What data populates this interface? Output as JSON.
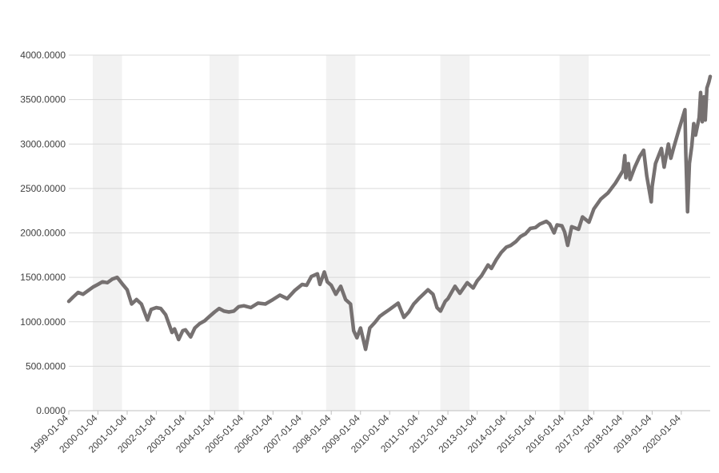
{
  "chart_data": {
    "type": "line",
    "title": "",
    "xlabel": "",
    "ylabel": "",
    "ylim": [
      0,
      4000
    ],
    "yticks": [
      "0.0000",
      "500.0000",
      "1000.0000",
      "1500.0000",
      "2000.0000",
      "2500.0000",
      "3000.0000",
      "3500.0000",
      "4000.0000"
    ],
    "xticks": [
      "1999-01-04",
      "2000-01-04",
      "2001-01-04",
      "2002-01-04",
      "2003-01-04",
      "2004-01-04",
      "2005-01-04",
      "2006-01-04",
      "2007-01-04",
      "2008-01-04",
      "2009-01-04",
      "2010-01-04",
      "2011-01-04",
      "2012-01-04",
      "2013-01-04",
      "2014-01-04",
      "2015-01-04",
      "2016-01-04",
      "2017-01-04",
      "2018-01-04",
      "2019-01-04",
      "2020-01-04"
    ],
    "grid": true,
    "line_color": "#767171",
    "shade_color": "#f2f2f2",
    "shaded_periods": [
      [
        "1999-11-01",
        "2000-11-01"
      ],
      [
        "2003-11-01",
        "2004-11-01"
      ],
      [
        "2007-11-01",
        "2008-11-01"
      ],
      [
        "2011-10-01",
        "2012-10-01"
      ],
      [
        "2015-11-01",
        "2016-11-01"
      ]
    ],
    "x": [
      "1999-01-04",
      "1999-03-01",
      "1999-05-01",
      "1999-07-01",
      "1999-09-01",
      "1999-11-01",
      "2000-01-04",
      "2000-03-01",
      "2000-05-01",
      "2000-07-01",
      "2000-09-01",
      "2000-11-01",
      "2001-01-04",
      "2001-03-01",
      "2001-05-01",
      "2001-07-01",
      "2001-09-15",
      "2001-11-01",
      "2002-01-04",
      "2002-03-01",
      "2002-05-01",
      "2002-07-20",
      "2002-08-20",
      "2002-10-10",
      "2002-12-01",
      "2003-01-04",
      "2003-03-10",
      "2003-05-01",
      "2003-07-01",
      "2003-09-01",
      "2003-11-01",
      "2004-01-04",
      "2004-03-01",
      "2004-05-01",
      "2004-07-01",
      "2004-09-01",
      "2004-11-01",
      "2005-01-04",
      "2005-04-01",
      "2005-07-01",
      "2005-10-01",
      "2006-01-04",
      "2006-04-01",
      "2006-07-01",
      "2006-10-01",
      "2007-01-04",
      "2007-03-01",
      "2007-05-01",
      "2007-07-15",
      "2007-08-15",
      "2007-10-09",
      "2007-11-15",
      "2008-01-04",
      "2008-03-01",
      "2008-05-01",
      "2008-07-01",
      "2008-09-01",
      "2008-10-10",
      "2008-11-20",
      "2009-01-04",
      "2009-03-09",
      "2009-05-01",
      "2009-07-01",
      "2009-09-01",
      "2009-11-01",
      "2010-01-04",
      "2010-04-20",
      "2010-07-01",
      "2010-09-01",
      "2010-11-01",
      "2011-01-04",
      "2011-04-29",
      "2011-07-01",
      "2011-08-20",
      "2011-10-03",
      "2011-12-01",
      "2012-01-04",
      "2012-04-01",
      "2012-06-01",
      "2012-09-01",
      "2012-11-15",
      "2013-01-04",
      "2013-03-01",
      "2013-05-20",
      "2013-07-01",
      "2013-09-01",
      "2013-11-01",
      "2014-01-04",
      "2014-03-01",
      "2014-05-01",
      "2014-07-01",
      "2014-09-01",
      "2014-11-01",
      "2015-01-04",
      "2015-03-01",
      "2015-05-20",
      "2015-07-01",
      "2015-08-25",
      "2015-10-01",
      "2015-12-01",
      "2016-01-04",
      "2016-02-11",
      "2016-04-01",
      "2016-06-27",
      "2016-08-15",
      "2016-11-04",
      "2017-01-04",
      "2017-04-01",
      "2017-07-01",
      "2017-10-01",
      "2018-01-04",
      "2018-01-26",
      "2018-02-08",
      "2018-03-12",
      "2018-04-02",
      "2018-06-01",
      "2018-08-01",
      "2018-09-20",
      "2018-10-29",
      "2018-12-24",
      "2019-01-04",
      "2019-02-15",
      "2019-04-30",
      "2019-06-03",
      "2019-07-26",
      "2019-08-26",
      "2019-10-01",
      "2019-12-01",
      "2020-01-04",
      "2020-02-19",
      "2020-03-01",
      "2020-03-23",
      "2020-04-15",
      "2020-05-15",
      "2020-06-08",
      "2020-07-01",
      "2020-08-15",
      "2020-09-02",
      "2020-09-23",
      "2020-10-12",
      "2020-10-30",
      "2020-11-20",
      "2020-12-15",
      "2020-12-31"
    ],
    "values": [
      1230,
      1280,
      1330,
      1310,
      1350,
      1390,
      1420,
      1450,
      1440,
      1480,
      1500,
      1430,
      1360,
      1200,
      1250,
      1200,
      1020,
      1140,
      1160,
      1150,
      1080,
      880,
      920,
      800,
      900,
      910,
      830,
      930,
      980,
      1010,
      1060,
      1110,
      1150,
      1120,
      1110,
      1120,
      1170,
      1180,
      1160,
      1210,
      1200,
      1250,
      1300,
      1260,
      1350,
      1420,
      1410,
      1510,
      1540,
      1420,
      1560,
      1450,
      1410,
      1310,
      1400,
      1250,
      1200,
      900,
      820,
      930,
      690,
      930,
      990,
      1060,
      1100,
      1140,
      1210,
      1050,
      1110,
      1200,
      1260,
      1360,
      1310,
      1160,
      1120,
      1230,
      1260,
      1400,
      1320,
      1440,
      1380,
      1460,
      1520,
      1640,
      1600,
      1700,
      1780,
      1840,
      1860,
      1900,
      1960,
      1990,
      2050,
      2060,
      2100,
      2130,
      2100,
      2000,
      2090,
      2080,
      2010,
      1860,
      2070,
      2040,
      2180,
      2120,
      2270,
      2380,
      2450,
      2560,
      2700,
      2870,
      2620,
      2780,
      2600,
      2740,
      2860,
      2930,
      2640,
      2350,
      2520,
      2780,
      2950,
      2740,
      3000,
      2840,
      2960,
      3150,
      3250,
      3386,
      2900,
      2237,
      2780,
      2980,
      3230,
      3100,
      3300,
      3580,
      3250,
      3530,
      3270,
      3630,
      3700,
      3760
    ]
  }
}
